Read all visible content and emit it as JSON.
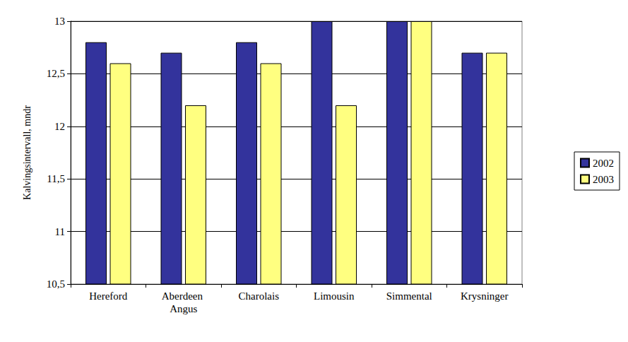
{
  "chart_data": {
    "type": "bar",
    "y_label": "Kalvingsintervall, mndr",
    "categories": [
      "Hereford",
      "Aberdeen Angus",
      "Charolais",
      "Limousin",
      "Simmental",
      "Krysninger"
    ],
    "series": [
      {
        "name": "2002",
        "color": "#33339c",
        "values": [
          12.8,
          12.7,
          12.8,
          13.0,
          13.0,
          12.7
        ]
      },
      {
        "name": "2003",
        "color": "#ffff80",
        "values": [
          12.6,
          12.2,
          12.6,
          12.2,
          13.0,
          12.7
        ]
      }
    ],
    "ylim": [
      10.5,
      13
    ],
    "yticks": [
      {
        "value": 10.5,
        "label": "10,5"
      },
      11,
      {
        "value": 11.5,
        "label": "11,5"
      },
      12,
      {
        "value": 12.5,
        "label": "12,5"
      },
      13
    ],
    "grid": true,
    "legend": "right"
  }
}
